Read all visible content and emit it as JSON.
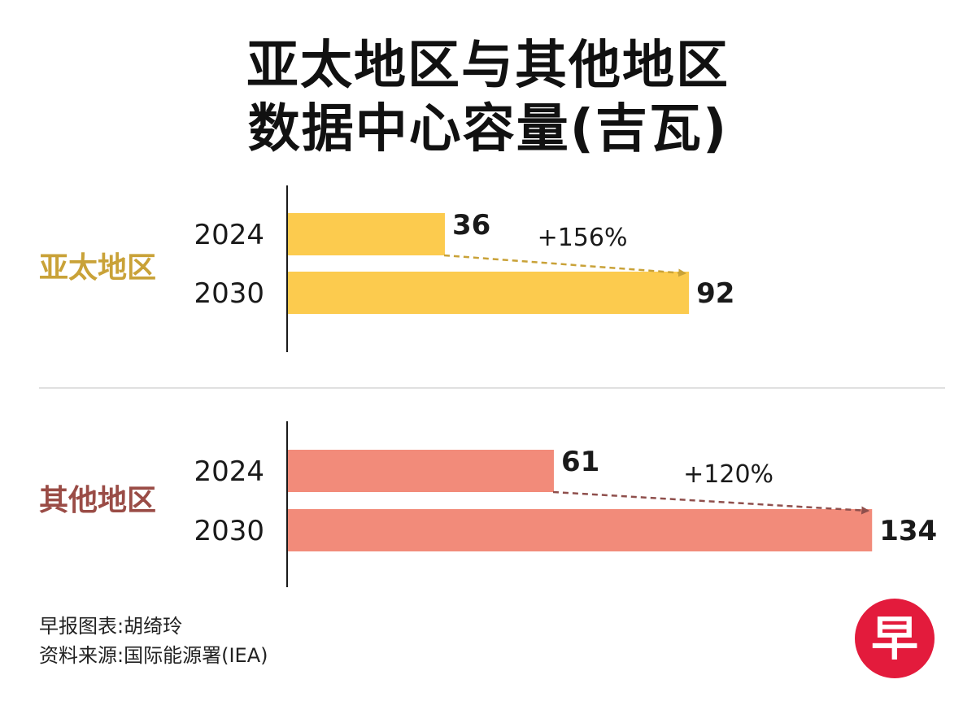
{
  "title": {
    "line1": "亚太地区与其他地区",
    "line2": "数据中心容量(吉瓦)"
  },
  "colors": {
    "apac_bar": "#fccb4e",
    "apac_label": "#c9a238",
    "apac_arrow": "#c9a238",
    "other_bar": "#f28b7a",
    "other_label": "#9a4c46",
    "other_arrow": "#8f4f4c",
    "logo_circle": "#e31b3c"
  },
  "chart_data": [
    {
      "type": "bar",
      "group_label": "亚太地区",
      "categories": [
        "2024",
        "2030"
      ],
      "values": [
        36,
        92
      ],
      "value_labels": [
        "36",
        "92"
      ],
      "change_label": "+156%"
    },
    {
      "type": "bar",
      "group_label": "其他地区",
      "categories": [
        "2024",
        "2030"
      ],
      "values": [
        61,
        134
      ],
      "value_labels": [
        "61",
        "134"
      ],
      "change_label": "+120%"
    }
  ],
  "footer": {
    "credit": "早报图表:胡绮玲",
    "source": "资料来源:国际能源署(IEA)"
  },
  "logo": {
    "char": "早"
  }
}
